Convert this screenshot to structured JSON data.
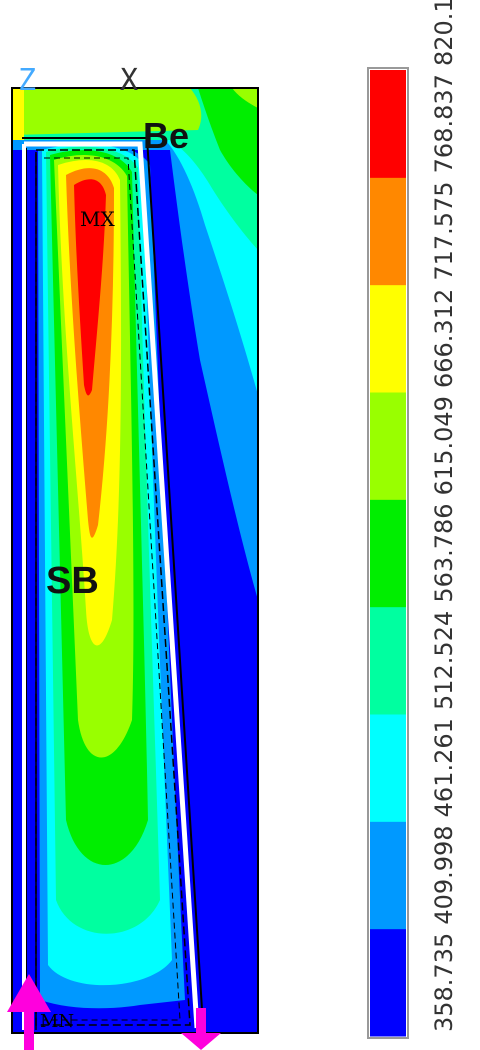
{
  "legend_bands": [
    {
      "color": "#0000ff"
    },
    {
      "color": "#0099ff"
    },
    {
      "color": "#00ffff"
    },
    {
      "color": "#00ffa0"
    },
    {
      "color": "#00ee00"
    },
    {
      "color": "#99ff00"
    },
    {
      "color": "#ffff00"
    },
    {
      "color": "#ff8800"
    },
    {
      "color": "#ff0000"
    }
  ],
  "legend_ticks": [
    "358.735",
    "409.998",
    "461.261",
    "512.524",
    "563.786",
    "615.049",
    "666.312",
    "717.575",
    "768.837",
    "820.1"
  ],
  "labels": {
    "be": "Be",
    "sb": "SB",
    "mx": "MX",
    "mn": "MN",
    "axis_z": "Z",
    "axis_x": "X"
  },
  "colors": {
    "arrow": "#ff00dd"
  }
}
